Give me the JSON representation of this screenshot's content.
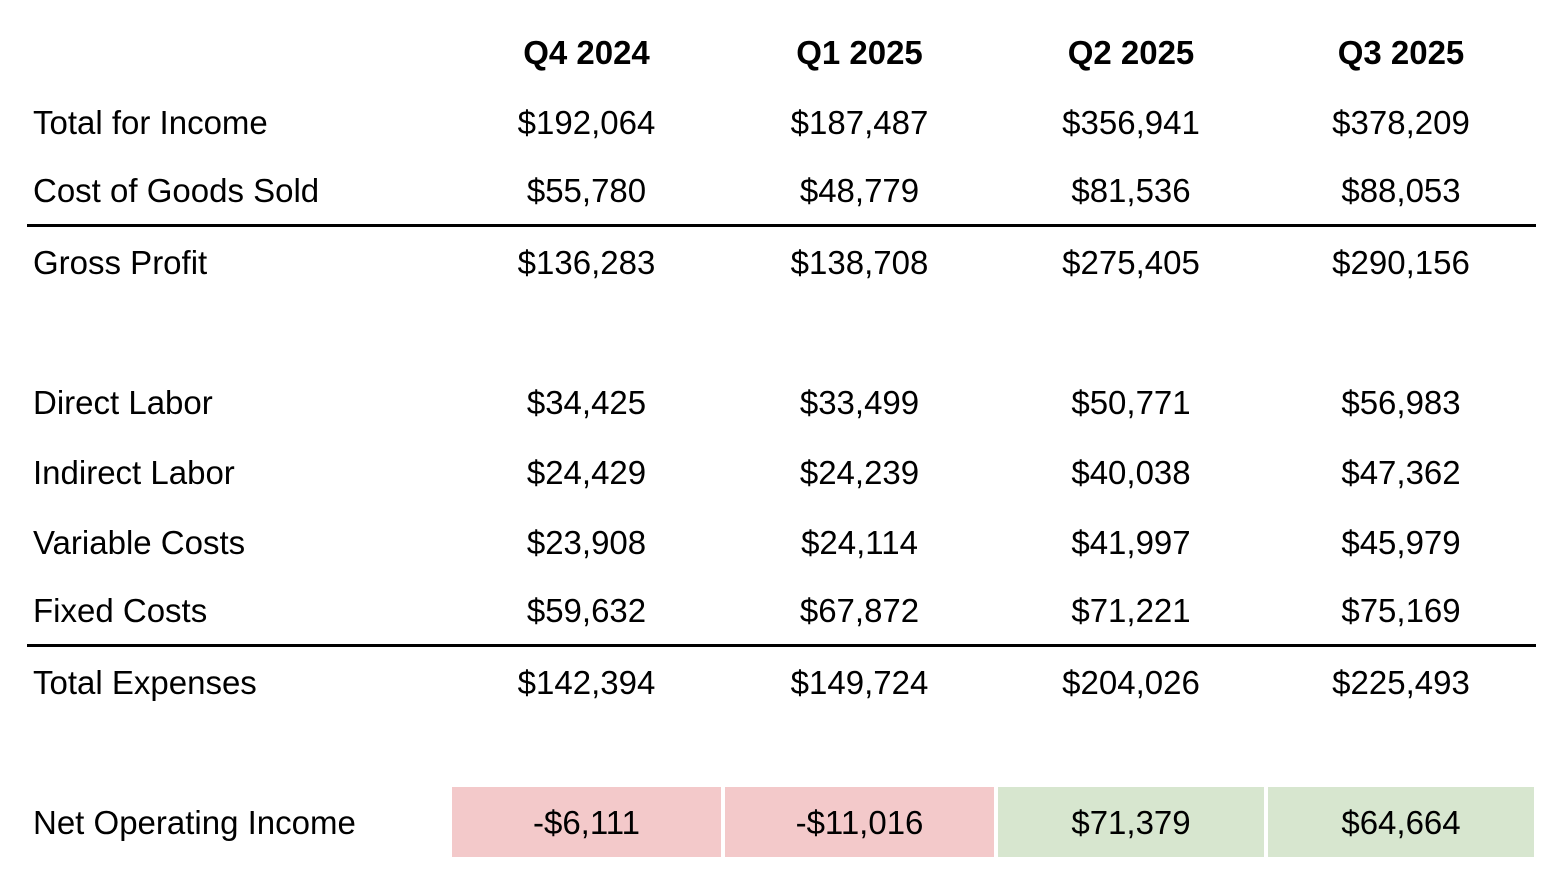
{
  "table": {
    "columns": [
      "Q4 2024",
      "Q1 2025",
      "Q2 2025",
      "Q3 2025"
    ],
    "rows": [
      {
        "label": "Total for Income",
        "values": [
          "$192,064",
          "$187,487",
          "$356,941",
          "$378,209"
        ]
      },
      {
        "label": "Cost of Goods Sold",
        "values": [
          "$55,780",
          "$48,779",
          "$81,536",
          "$88,053"
        ]
      },
      {
        "label": "Gross Profit",
        "values": [
          "$136,283",
          "$138,708",
          "$275,405",
          "$290,156"
        ]
      },
      {
        "label": "Direct Labor",
        "values": [
          "$34,425",
          "$33,499",
          "$50,771",
          "$56,983"
        ]
      },
      {
        "label": "Indirect Labor",
        "values": [
          "$24,429",
          "$24,239",
          "$40,038",
          "$47,362"
        ]
      },
      {
        "label": "Variable Costs",
        "values": [
          "$23,908",
          "$24,114",
          "$41,997",
          "$45,979"
        ]
      },
      {
        "label": "Fixed Costs",
        "values": [
          "$59,632",
          "$67,872",
          "$71,221",
          "$75,169"
        ]
      },
      {
        "label": "Total Expenses",
        "values": [
          "$142,394",
          "$149,724",
          "$204,026",
          "$225,493"
        ]
      },
      {
        "label": "Net Operating Income",
        "values": [
          "-$6,111",
          "-$11,016",
          "$71,379",
          "$64,664"
        ]
      }
    ]
  },
  "colors": {
    "negative-bg": "#f3c9ca",
    "positive-bg": "#d7e6cf",
    "rule": "#000000"
  },
  "chart_data": {
    "type": "table",
    "columns": [
      "Q4 2024",
      "Q1 2025",
      "Q2 2025",
      "Q3 2025"
    ],
    "rows": [
      {
        "label": "Total for Income",
        "values": [
          192064,
          187487,
          356941,
          378209
        ]
      },
      {
        "label": "Cost of Goods Sold",
        "values": [
          55780,
          48779,
          81536,
          88053
        ]
      },
      {
        "label": "Gross Profit",
        "values": [
          136283,
          138708,
          275405,
          290156
        ]
      },
      {
        "label": "Direct Labor",
        "values": [
          34425,
          33499,
          50771,
          56983
        ]
      },
      {
        "label": "Indirect Labor",
        "values": [
          24429,
          24239,
          40038,
          47362
        ]
      },
      {
        "label": "Variable Costs",
        "values": [
          23908,
          24114,
          41997,
          45979
        ]
      },
      {
        "label": "Fixed Costs",
        "values": [
          59632,
          67872,
          71221,
          75169
        ]
      },
      {
        "label": "Total Expenses",
        "values": [
          142394,
          149724,
          204026,
          225493
        ]
      },
      {
        "label": "Net Operating Income",
        "values": [
          -6111,
          -11016,
          71379,
          64664
        ],
        "cell_highlights": [
          "negative",
          "negative",
          "positive",
          "positive"
        ]
      }
    ],
    "layout_hints": {
      "rule_below_rows": [
        "Cost of Goods Sold",
        "Fixed Costs"
      ],
      "blank_row_after": [
        "Gross Profit",
        "Total Expenses"
      ],
      "value_alignment": "center",
      "header_style": "bold"
    }
  }
}
